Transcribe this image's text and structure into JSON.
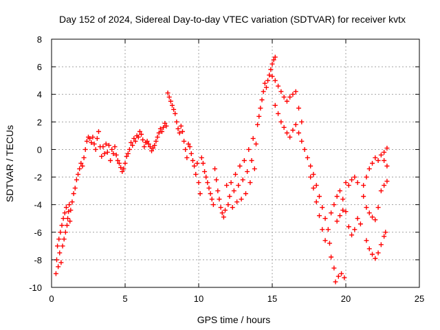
{
  "chart_data": {
    "type": "scatter",
    "title": "Day 152 of 2024, Sidereal Day-to-day VTEC variation (SDTVAR) for receiver kvtx",
    "xlabel": "GPS time / hours",
    "ylabel": "SDTVAR / TECUs",
    "xlim": [
      0,
      25
    ],
    "ylim": [
      -10,
      8
    ],
    "xticks": [
      0,
      5,
      10,
      15,
      20,
      25
    ],
    "yticks": [
      -10,
      -8,
      -6,
      -4,
      -2,
      0,
      2,
      4,
      6,
      8
    ],
    "xtick_labels": [
      "0",
      "5",
      "10",
      "15",
      "20",
      "25"
    ],
    "ytick_labels": [
      "-10",
      "-8",
      "-6",
      "-4",
      "-2",
      "0",
      "2",
      "4",
      "6",
      "8"
    ],
    "grid": true,
    "marker": "plus",
    "color": "#ff0000",
    "series": [
      {
        "points": [
          [
            0.3,
            -9.0
          ],
          [
            0.35,
            -8.0
          ],
          [
            0.4,
            -7.0
          ],
          [
            0.45,
            -8.5
          ],
          [
            0.5,
            -6.5
          ],
          [
            0.55,
            -7.5
          ],
          [
            0.6,
            -6.0
          ],
          [
            0.65,
            -8.2
          ],
          [
            0.7,
            -5.5
          ],
          [
            0.75,
            -7.0
          ],
          [
            0.8,
            -5.0
          ],
          [
            0.85,
            -6.5
          ],
          [
            0.9,
            -4.6
          ],
          [
            0.95,
            -6.0
          ],
          [
            1.0,
            -4.2
          ],
          [
            1.05,
            -5.5
          ],
          [
            1.1,
            -5.0
          ],
          [
            1.15,
            -4.5
          ],
          [
            1.2,
            -4.0
          ],
          [
            1.25,
            -5.2
          ],
          [
            1.3,
            -4.4
          ],
          [
            1.4,
            -3.8
          ],
          [
            1.5,
            -3.2
          ],
          [
            1.6,
            -2.8
          ],
          [
            1.7,
            -2.2
          ],
          [
            1.8,
            -1.8
          ],
          [
            1.9,
            -1.4
          ],
          [
            2.0,
            -1.0
          ],
          [
            2.1,
            -1.2
          ],
          [
            2.2,
            -0.6
          ],
          [
            2.3,
            0.0
          ],
          [
            2.4,
            0.6
          ],
          [
            2.5,
            0.9
          ],
          [
            2.6,
            0.8
          ],
          [
            2.7,
            0.5
          ],
          [
            2.8,
            0.9
          ],
          [
            2.9,
            0.4
          ],
          [
            3.0,
            0.0
          ],
          [
            3.1,
            0.8
          ],
          [
            3.2,
            1.3
          ],
          [
            3.3,
            0.2
          ],
          [
            3.4,
            -0.5
          ],
          [
            3.5,
            0.2
          ],
          [
            3.6,
            -0.3
          ],
          [
            3.7,
            0.4
          ],
          [
            3.8,
            -0.2
          ],
          [
            3.9,
            0.3
          ],
          [
            4.0,
            -0.8
          ],
          [
            4.1,
            0.0
          ],
          [
            4.2,
            -0.3
          ],
          [
            4.3,
            0.2
          ],
          [
            4.4,
            -0.4
          ],
          [
            4.5,
            -0.8
          ],
          [
            4.6,
            -1.0
          ],
          [
            4.7,
            -1.3
          ],
          [
            4.8,
            -1.6
          ],
          [
            4.9,
            -1.4
          ],
          [
            5.0,
            -1.0
          ],
          [
            5.1,
            -0.5
          ],
          [
            5.2,
            -0.3
          ],
          [
            5.3,
            0.0
          ],
          [
            5.4,
            0.5
          ],
          [
            5.5,
            0.3
          ],
          [
            5.6,
            0.8
          ],
          [
            5.7,
            0.6
          ],
          [
            5.8,
            1.0
          ],
          [
            5.9,
            0.9
          ],
          [
            6.0,
            1.3
          ],
          [
            6.1,
            1.1
          ],
          [
            6.2,
            0.7
          ],
          [
            6.3,
            0.2
          ],
          [
            6.4,
            0.5
          ],
          [
            6.5,
            0.6
          ],
          [
            6.6,
            0.4
          ],
          [
            6.7,
            0.2
          ],
          [
            6.8,
            -0.1
          ],
          [
            6.9,
            0.1
          ],
          [
            7.0,
            0.3
          ],
          [
            7.1,
            0.6
          ],
          [
            7.2,
            0.9
          ],
          [
            7.3,
            1.2
          ],
          [
            7.4,
            1.5
          ],
          [
            7.5,
            1.3
          ],
          [
            7.6,
            1.6
          ],
          [
            7.7,
            1.9
          ],
          [
            7.8,
            1.7
          ],
          [
            7.9,
            4.1
          ],
          [
            8.0,
            3.8
          ],
          [
            8.1,
            3.5
          ],
          [
            8.2,
            3.2
          ],
          [
            8.3,
            2.9
          ],
          [
            8.4,
            2.6
          ],
          [
            8.5,
            2.0
          ],
          [
            8.6,
            1.5
          ],
          [
            8.7,
            1.2
          ],
          [
            8.8,
            1.7
          ],
          [
            8.9,
            1.3
          ],
          [
            9.0,
            0.6
          ],
          [
            9.1,
            0.0
          ],
          [
            9.2,
            -0.6
          ],
          [
            9.3,
            0.4
          ],
          [
            9.4,
            0.2
          ],
          [
            9.5,
            -0.3
          ],
          [
            9.6,
            -0.8
          ],
          [
            9.7,
            -1.2
          ],
          [
            9.8,
            -1.8
          ],
          [
            9.9,
            -1.0
          ],
          [
            10.0,
            -2.4
          ],
          [
            10.1,
            -3.2
          ],
          [
            10.2,
            -0.6
          ],
          [
            10.3,
            -1.0
          ],
          [
            10.4,
            -1.6
          ],
          [
            10.5,
            -2.0
          ],
          [
            10.6,
            -2.4
          ],
          [
            10.7,
            -2.8
          ],
          [
            10.8,
            -3.2
          ],
          [
            10.9,
            -3.6
          ],
          [
            11.0,
            -4.0
          ],
          [
            11.1,
            -1.4
          ],
          [
            11.2,
            -2.2
          ],
          [
            11.3,
            -3.0
          ],
          [
            11.4,
            -3.6
          ],
          [
            11.5,
            -4.2
          ],
          [
            11.6,
            -4.6
          ],
          [
            11.7,
            -4.9
          ],
          [
            11.8,
            -4.4
          ],
          [
            11.9,
            -2.6
          ],
          [
            12.0,
            -4.0
          ],
          [
            12.1,
            -3.4
          ],
          [
            12.2,
            -2.4
          ],
          [
            12.3,
            -4.2
          ],
          [
            12.4,
            -3.0
          ],
          [
            12.5,
            -1.8
          ],
          [
            12.6,
            -3.8
          ],
          [
            12.7,
            -2.6
          ],
          [
            12.8,
            -1.2
          ],
          [
            12.9,
            -3.6
          ],
          [
            13.0,
            -2.2
          ],
          [
            13.1,
            -0.8
          ],
          [
            13.2,
            -3.2
          ],
          [
            13.3,
            -1.6
          ],
          [
            13.4,
            0.0
          ],
          [
            13.5,
            -2.4
          ],
          [
            13.6,
            -0.8
          ],
          [
            13.7,
            0.8
          ],
          [
            13.8,
            -1.4
          ],
          [
            13.9,
            0.4
          ],
          [
            14.0,
            1.8
          ],
          [
            14.1,
            2.4
          ],
          [
            14.2,
            3.0
          ],
          [
            14.3,
            3.6
          ],
          [
            14.4,
            4.2
          ],
          [
            14.5,
            4.8
          ],
          [
            14.6,
            4.5
          ],
          [
            14.7,
            5.0
          ],
          [
            14.8,
            5.4
          ],
          [
            14.9,
            5.8
          ],
          [
            15.0,
            6.2
          ],
          [
            15.1,
            6.5
          ],
          [
            15.2,
            6.7
          ],
          [
            15.0,
            5.3
          ],
          [
            15.2,
            5.0
          ],
          [
            15.4,
            4.6
          ],
          [
            15.6,
            4.2
          ],
          [
            15.8,
            3.8
          ],
          [
            16.0,
            3.5
          ],
          [
            16.2,
            3.8
          ],
          [
            16.4,
            4.0
          ],
          [
            16.6,
            4.2
          ],
          [
            16.8,
            3.0
          ],
          [
            17.0,
            2.0
          ],
          [
            15.2,
            3.2
          ],
          [
            15.4,
            2.6
          ],
          [
            15.6,
            2.0
          ],
          [
            15.8,
            1.6
          ],
          [
            16.0,
            1.2
          ],
          [
            16.2,
            0.9
          ],
          [
            16.4,
            1.4
          ],
          [
            16.6,
            1.8
          ],
          [
            16.8,
            1.2
          ],
          [
            17.0,
            0.6
          ],
          [
            17.2,
            0.0
          ],
          [
            17.4,
            -0.6
          ],
          [
            17.6,
            -1.2
          ],
          [
            17.8,
            -1.8
          ],
          [
            18.0,
            -2.6
          ],
          [
            18.2,
            -3.4
          ],
          [
            18.4,
            -4.2
          ],
          [
            18.6,
            -5.0
          ],
          [
            18.8,
            -5.8
          ],
          [
            18.9,
            -6.8
          ],
          [
            17.6,
            -2.0
          ],
          [
            17.8,
            -2.8
          ],
          [
            18.0,
            -3.8
          ],
          [
            18.2,
            -4.8
          ],
          [
            18.4,
            -5.8
          ],
          [
            18.6,
            -6.6
          ],
          [
            19.0,
            -7.8
          ],
          [
            19.2,
            -8.6
          ],
          [
            19.3,
            -9.6
          ],
          [
            19.5,
            -9.2
          ],
          [
            19.7,
            -9.0
          ],
          [
            19.9,
            -9.3
          ],
          [
            19.0,
            -4.6
          ],
          [
            19.2,
            -4.0
          ],
          [
            19.4,
            -3.4
          ],
          [
            19.6,
            -3.0
          ],
          [
            19.8,
            -3.6
          ],
          [
            20.0,
            -2.4
          ],
          [
            20.2,
            -2.6
          ],
          [
            20.4,
            -2.2
          ],
          [
            20.6,
            -2.0
          ],
          [
            20.8,
            -2.4
          ],
          [
            19.4,
            -5.2
          ],
          [
            19.6,
            -4.8
          ],
          [
            19.8,
            -4.4
          ],
          [
            20.0,
            -4.5
          ],
          [
            20.2,
            -5.6
          ],
          [
            20.4,
            -6.2
          ],
          [
            20.6,
            -5.8
          ],
          [
            20.8,
            -5.0
          ],
          [
            21.0,
            -5.4
          ],
          [
            21.2,
            -2.6
          ],
          [
            21.4,
            -2.0
          ],
          [
            21.6,
            -1.4
          ],
          [
            21.8,
            -1.0
          ],
          [
            22.0,
            -0.6
          ],
          [
            22.2,
            -0.8
          ],
          [
            22.4,
            -0.4
          ],
          [
            22.6,
            -0.2
          ],
          [
            22.8,
            0.1
          ],
          [
            21.2,
            -3.4
          ],
          [
            21.4,
            -4.2
          ],
          [
            21.6,
            -4.6
          ],
          [
            21.8,
            -4.9
          ],
          [
            22.0,
            -5.1
          ],
          [
            22.2,
            -4.2
          ],
          [
            22.4,
            -3.0
          ],
          [
            22.6,
            -2.6
          ],
          [
            22.8,
            -2.3
          ],
          [
            21.4,
            -6.6
          ],
          [
            21.6,
            -7.2
          ],
          [
            21.8,
            -7.6
          ],
          [
            22.0,
            -7.9
          ],
          [
            22.2,
            -7.5
          ],
          [
            22.4,
            -6.9
          ],
          [
            22.6,
            -6.3
          ],
          [
            22.7,
            -6.0
          ],
          [
            22.6,
            -0.8
          ],
          [
            22.8,
            -1.2
          ]
        ]
      }
    ]
  }
}
